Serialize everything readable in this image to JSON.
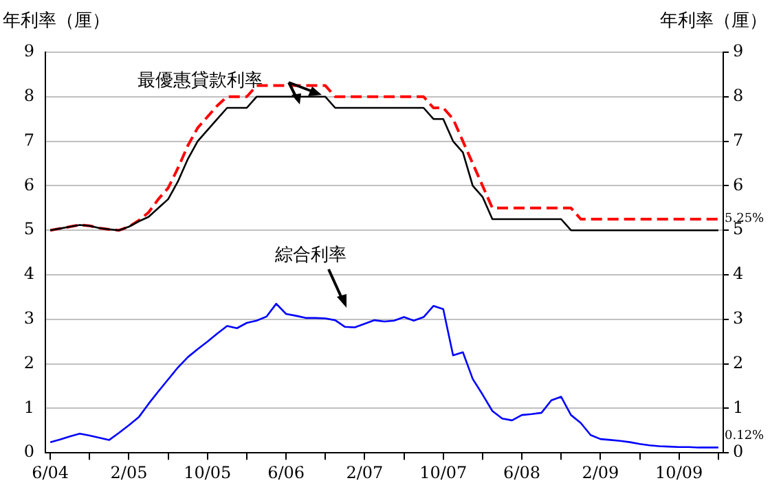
{
  "chart_data": {
    "type": "line",
    "ylabel": "年利率（厘）",
    "y2label": "年利率（厘）",
    "categories": [
      "6/04",
      null,
      null,
      null,
      null,
      null,
      null,
      null,
      "2/05",
      null,
      null,
      null,
      null,
      null,
      null,
      null,
      "10/05",
      null,
      null,
      null,
      null,
      null,
      null,
      null,
      "6/06",
      null,
      null,
      null,
      null,
      null,
      null,
      null,
      "2/07",
      null,
      null,
      null,
      null,
      null,
      null,
      null,
      "10/07",
      null,
      null,
      null,
      null,
      null,
      null,
      null,
      "6/08",
      null,
      null,
      null,
      null,
      null,
      null,
      null,
      "2/09",
      null,
      null,
      null,
      null,
      null,
      null,
      null,
      "10/09",
      null,
      null,
      null,
      null
    ],
    "series": [
      {
        "color": "#000000",
        "line_style": "solid",
        "values": [
          5.0,
          5.04,
          5.08,
          5.12,
          5.1,
          5.05,
          5.02,
          5.0,
          5.08,
          5.2,
          5.3,
          5.5,
          5.7,
          6.1,
          6.6,
          7.0,
          7.25,
          7.5,
          7.75,
          7.75,
          7.75,
          8.0,
          8.0,
          8.0,
          8.0,
          8.0,
          8.0,
          8.0,
          8.0,
          7.75,
          7.75,
          7.75,
          7.75,
          7.75,
          7.75,
          7.75,
          7.75,
          7.75,
          7.75,
          7.5,
          7.5,
          7.0,
          6.75,
          6.0,
          5.75,
          5.25,
          5.25,
          5.25,
          5.25,
          5.25,
          5.25,
          5.25,
          5.25,
          5.0,
          5.0,
          5.0,
          5.0,
          5.0,
          5.0,
          5.0,
          5.0,
          5.0,
          5.0,
          5.0,
          5.0,
          5.0,
          5.0,
          5.0,
          5.0
        ]
      },
      {
        "color": "#ff0000",
        "line_style": "dashed",
        "values": [
          5.0,
          5.04,
          5.08,
          5.12,
          5.1,
          5.05,
          5.02,
          5.0,
          5.08,
          5.22,
          5.4,
          5.7,
          5.95,
          6.4,
          6.9,
          7.3,
          7.55,
          7.8,
          8.0,
          8.0,
          8.0,
          8.25,
          8.25,
          8.25,
          8.25,
          8.25,
          8.25,
          8.25,
          8.25,
          8.0,
          8.0,
          8.0,
          8.0,
          8.0,
          8.0,
          8.0,
          8.0,
          8.0,
          8.0,
          7.75,
          7.75,
          7.5,
          7.0,
          6.5,
          6.0,
          5.5,
          5.5,
          5.5,
          5.5,
          5.5,
          5.5,
          5.5,
          5.5,
          5.5,
          5.25,
          5.25,
          5.25,
          5.25,
          5.25,
          5.25,
          5.25,
          5.25,
          5.25,
          5.25,
          5.25,
          5.25,
          5.25,
          5.25,
          5.25
        ]
      },
      {
        "color": "#0000ff",
        "line_style": "solid",
        "values": [
          0.24,
          0.3,
          0.37,
          0.43,
          0.39,
          0.34,
          0.29,
          0.45,
          0.62,
          0.8,
          1.1,
          1.38,
          1.65,
          1.92,
          2.15,
          2.33,
          2.5,
          2.68,
          2.85,
          2.8,
          2.92,
          2.97,
          3.06,
          3.35,
          3.12,
          3.08,
          3.03,
          3.03,
          3.02,
          2.98,
          2.83,
          2.82,
          2.9,
          2.98,
          2.95,
          2.97,
          3.05,
          2.97,
          3.05,
          3.3,
          3.23,
          2.19,
          2.26,
          1.66,
          1.31,
          0.94,
          0.77,
          0.73,
          0.85,
          0.87,
          0.9,
          1.18,
          1.26,
          0.85,
          0.67,
          0.4,
          0.31,
          0.29,
          0.27,
          0.24,
          0.2,
          0.17,
          0.15,
          0.14,
          0.13,
          0.13,
          0.12,
          0.12,
          0.12
        ]
      }
    ],
    "ylim": [
      0,
      9
    ],
    "yticks": [
      0,
      1,
      2,
      3,
      4,
      5,
      6,
      7,
      8,
      9
    ],
    "y2lim": [
      0,
      9
    ],
    "y2ticks": [
      0,
      1,
      2,
      3,
      4,
      5,
      6,
      7,
      8,
      9
    ],
    "grid": "y",
    "legend": false,
    "marker": "none",
    "annotations": [
      "最優惠貸款利率",
      "綜合利率",
      "5.25%",
      "0.12%"
    ]
  }
}
